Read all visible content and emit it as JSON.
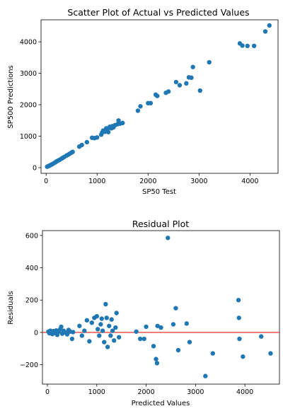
{
  "chart_data": [
    {
      "type": "scatter",
      "title": "Scatter Plot of Actual vs Predicted Values",
      "xlabel": "SP50 Test",
      "ylabel": "SP500 Predictions",
      "xlim": [
        -100,
        4550
      ],
      "ylim": [
        -180,
        4700
      ],
      "xticks": [
        0,
        1000,
        2000,
        3000,
        4000
      ],
      "yticks": [
        0,
        1000,
        2000,
        3000,
        4000
      ],
      "grid": false,
      "marker_color": "#1f77b4",
      "points": [
        [
          20,
          30
        ],
        [
          40,
          45
        ],
        [
          60,
          60
        ],
        [
          80,
          75
        ],
        [
          100,
          95
        ],
        [
          120,
          110
        ],
        [
          150,
          140
        ],
        [
          180,
          170
        ],
        [
          200,
          195
        ],
        [
          230,
          220
        ],
        [
          260,
          245
        ],
        [
          300,
          285
        ],
        [
          330,
          315
        ],
        [
          360,
          345
        ],
        [
          400,
          385
        ],
        [
          430,
          410
        ],
        [
          460,
          440
        ],
        [
          500,
          480
        ],
        [
          520,
          500
        ],
        [
          650,
          670
        ],
        [
          700,
          720
        ],
        [
          800,
          810
        ],
        [
          900,
          950
        ],
        [
          950,
          940
        ],
        [
          1000,
          960
        ],
        [
          1080,
          1050
        ],
        [
          1100,
          1120
        ],
        [
          1120,
          1180
        ],
        [
          1150,
          1140
        ],
        [
          1180,
          1250
        ],
        [
          1200,
          1200
        ],
        [
          1220,
          1130
        ],
        [
          1250,
          1300
        ],
        [
          1280,
          1250
        ],
        [
          1300,
          1320
        ],
        [
          1320,
          1280
        ],
        [
          1350,
          1350
        ],
        [
          1400,
          1380
        ],
        [
          1420,
          1500
        ],
        [
          1450,
          1400
        ],
        [
          1500,
          1420
        ],
        [
          1800,
          1810
        ],
        [
          1850,
          1950
        ],
        [
          2000,
          2050
        ],
        [
          2050,
          2050
        ],
        [
          2150,
          2320
        ],
        [
          2180,
          2280
        ],
        [
          2350,
          2380
        ],
        [
          2400,
          2420
        ],
        [
          2550,
          2720
        ],
        [
          2620,
          2620
        ],
        [
          2750,
          2680
        ],
        [
          2800,
          2870
        ],
        [
          2880,
          3200
        ],
        [
          2850,
          2860
        ],
        [
          3020,
          2450
        ],
        [
          3200,
          3350
        ],
        [
          3800,
          3950
        ],
        [
          3850,
          3880
        ],
        [
          3950,
          3870
        ],
        [
          4080,
          3870
        ],
        [
          4300,
          4330
        ],
        [
          4380,
          4520
        ]
      ]
    },
    {
      "type": "scatter",
      "title": "Residual Plot",
      "xlabel": "Predicted Values",
      "ylabel": "Residuals",
      "xlim": [
        -100,
        4700
      ],
      "ylim": [
        -320,
        630
      ],
      "xticks": [
        0,
        1000,
        2000,
        3000,
        4000
      ],
      "yticks": [
        -200,
        0,
        200,
        400,
        600
      ],
      "grid": false,
      "marker_color": "#1f77b4",
      "reference_line": {
        "y": 0,
        "color": "#e8312a"
      },
      "points": [
        [
          20,
          5
        ],
        [
          40,
          -5
        ],
        [
          60,
          10
        ],
        [
          80,
          0
        ],
        [
          100,
          -10
        ],
        [
          120,
          8
        ],
        [
          150,
          -3
        ],
        [
          180,
          12
        ],
        [
          200,
          -15
        ],
        [
          230,
          5
        ],
        [
          260,
          20
        ],
        [
          280,
          35
        ],
        [
          300,
          -8
        ],
        [
          330,
          10
        ],
        [
          360,
          0
        ],
        [
          400,
          -12
        ],
        [
          430,
          15
        ],
        [
          460,
          5
        ],
        [
          500,
          -40
        ],
        [
          520,
          2
        ],
        [
          650,
          40
        ],
        [
          700,
          -20
        ],
        [
          750,
          10
        ],
        [
          800,
          75
        ],
        [
          850,
          -55
        ],
        [
          900,
          60
        ],
        [
          950,
          90
        ],
        [
          1000,
          100
        ],
        [
          1020,
          20
        ],
        [
          1050,
          -20
        ],
        [
          1080,
          50
        ],
        [
          1100,
          85
        ],
        [
          1120,
          10
        ],
        [
          1150,
          -60
        ],
        [
          1180,
          175
        ],
        [
          1200,
          90
        ],
        [
          1220,
          -90
        ],
        [
          1250,
          40
        ],
        [
          1280,
          -20
        ],
        [
          1300,
          80
        ],
        [
          1320,
          10
        ],
        [
          1350,
          -50
        ],
        [
          1380,
          30
        ],
        [
          1400,
          120
        ],
        [
          1450,
          -30
        ],
        [
          1800,
          5
        ],
        [
          1880,
          -40
        ],
        [
          1960,
          -40
        ],
        [
          2000,
          35
        ],
        [
          2150,
          -85
        ],
        [
          2200,
          -165
        ],
        [
          2220,
          -190
        ],
        [
          2230,
          40
        ],
        [
          2300,
          30
        ],
        [
          2440,
          585
        ],
        [
          2550,
          50
        ],
        [
          2600,
          150
        ],
        [
          2650,
          -110
        ],
        [
          2820,
          55
        ],
        [
          2880,
          -60
        ],
        [
          3200,
          -270
        ],
        [
          3350,
          -130
        ],
        [
          3870,
          200
        ],
        [
          3880,
          90
        ],
        [
          3890,
          -40
        ],
        [
          3960,
          -150
        ],
        [
          4330,
          -25
        ],
        [
          4520,
          -130
        ]
      ]
    }
  ]
}
